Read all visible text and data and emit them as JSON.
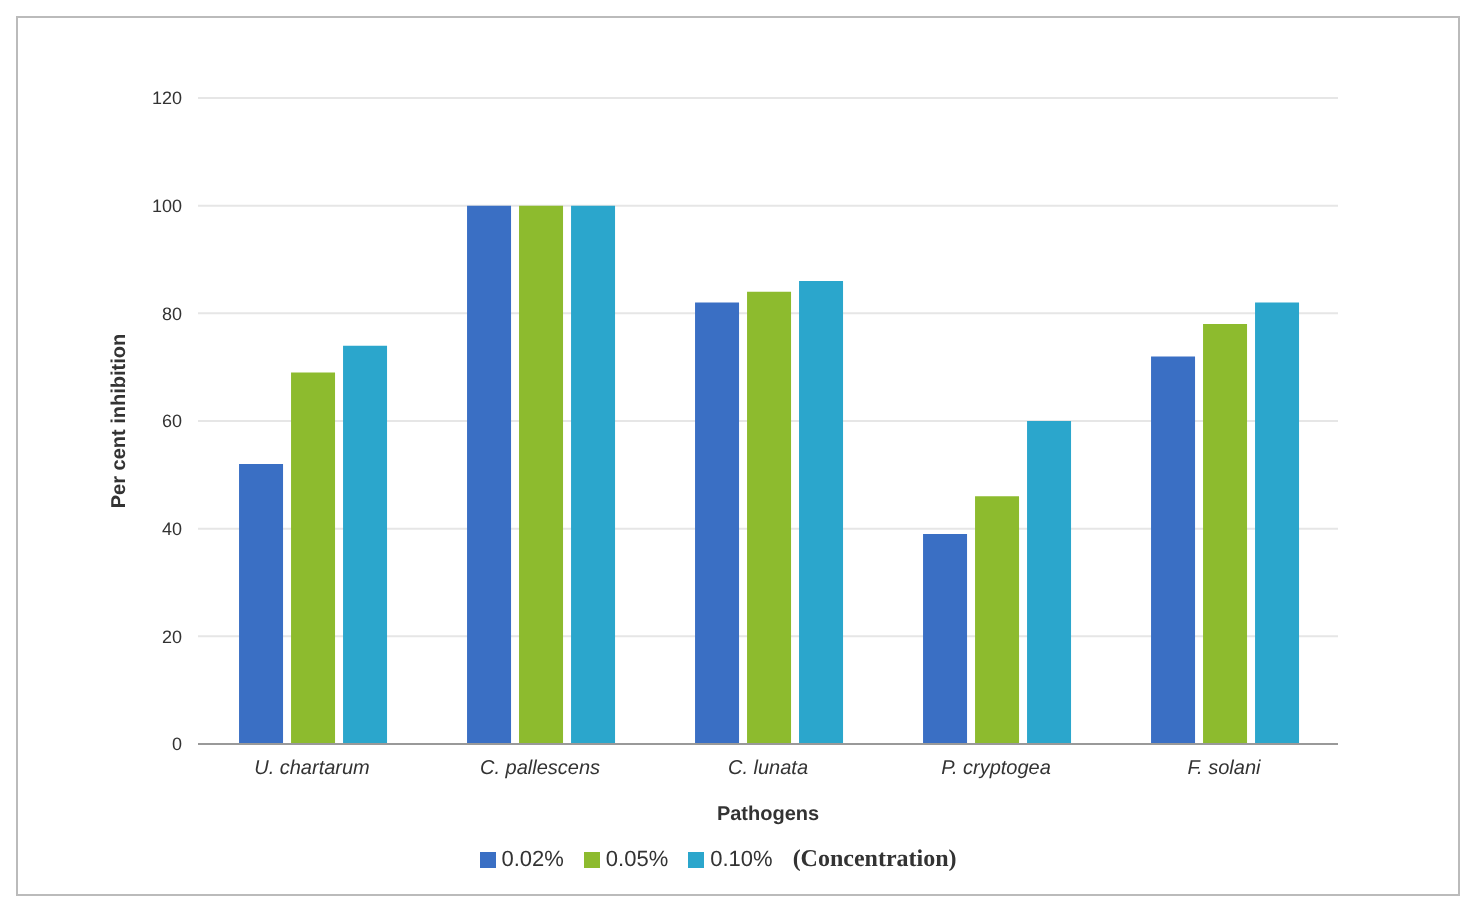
{
  "chart_data": {
    "type": "bar",
    "xlabel": "Pathogens",
    "ylabel": "Per cent inhibition",
    "legend_title": "(Concentration)",
    "categories": [
      "U. chartarum",
      "C. pallescens",
      "C. lunata",
      "P. cryptogea",
      "F. solani"
    ],
    "series": [
      {
        "name": "0.02%",
        "color": "#3a6fc4",
        "values": [
          52,
          100,
          82,
          39,
          72
        ]
      },
      {
        "name": "0.05%",
        "color": "#8dbb2e",
        "values": [
          69,
          100,
          84,
          46,
          78
        ]
      },
      {
        "name": "0.10%",
        "color": "#2ba6cc",
        "values": [
          74,
          100,
          86,
          60,
          82
        ]
      }
    ],
    "ylim": [
      0,
      120
    ],
    "yticks": [
      0,
      20,
      40,
      60,
      80,
      100,
      120
    ],
    "grid": "y",
    "legend": "bottom"
  }
}
